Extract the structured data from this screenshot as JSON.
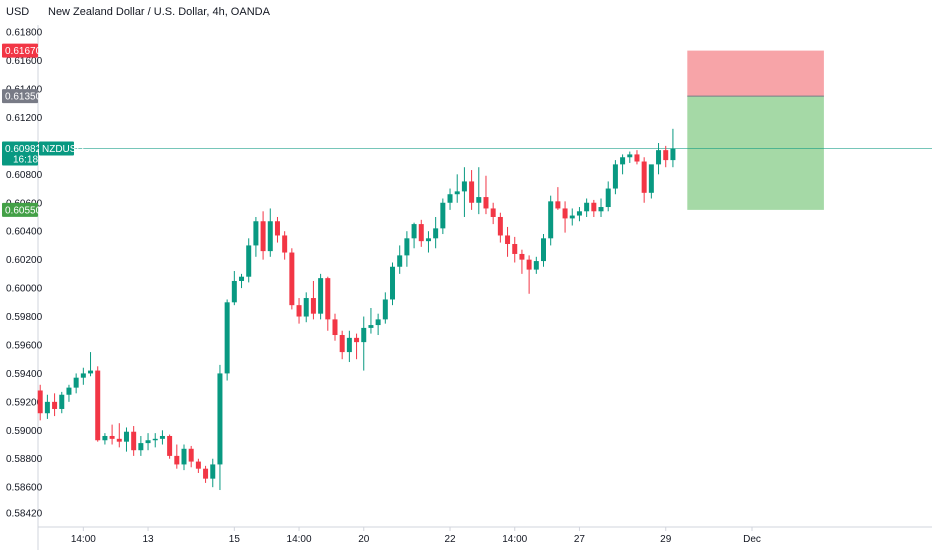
{
  "header": {
    "currency": "USD",
    "title": "New Zealand Dollar / U.S. Dollar, 4h, OANDA"
  },
  "colors": {
    "up": "#089981",
    "down": "#f23645",
    "grid_axis": "#d1d4dc",
    "stop_zone": "#f7a4a8",
    "target_zone": "#a5d9a6",
    "stop_tag": "#f23645",
    "entry_tag": "#787b86",
    "target_tag": "#43a047",
    "price_line": "#089981"
  },
  "price_tags": {
    "stop": "0.61670",
    "entry": "0.61350",
    "target": "0.60550",
    "last": "0.60982",
    "countdown": "16:18",
    "symbol": "NZDUSD"
  },
  "chart_data": {
    "type": "candlestick",
    "title": "New Zealand Dollar / U.S. Dollar, 4h, OANDA",
    "ylim": [
      0.5832,
      0.6185
    ],
    "y_ticks": [
      "0.58420",
      "0.58600",
      "0.58800",
      "0.59000",
      "0.59200",
      "0.59400",
      "0.59600",
      "0.59800",
      "0.60000",
      "0.60200",
      "0.60400",
      "0.60600",
      "0.60800",
      "0.61000",
      "0.61200",
      "0.61400",
      "0.61600",
      "0.61800"
    ],
    "x_ticks": [
      {
        "index": 6,
        "label": "14:00"
      },
      {
        "index": 15,
        "label": "13"
      },
      {
        "index": 27,
        "label": "15"
      },
      {
        "index": 36,
        "label": "14:00"
      },
      {
        "index": 45,
        "label": "20"
      },
      {
        "index": 57,
        "label": "22"
      },
      {
        "index": 66,
        "label": "14:00"
      },
      {
        "index": 75,
        "label": "27"
      },
      {
        "index": 87,
        "label": "29"
      },
      {
        "index": 99,
        "label": "Dec"
      }
    ],
    "candles": [
      [
        0.5928,
        0.5932,
        0.5907,
        0.5912
      ],
      [
        0.5912,
        0.5925,
        0.5908,
        0.592
      ],
      [
        0.592,
        0.5926,
        0.591,
        0.5915
      ],
      [
        0.5915,
        0.5927,
        0.5912,
        0.5925
      ],
      [
        0.5925,
        0.5932,
        0.592,
        0.593
      ],
      [
        0.593,
        0.594,
        0.5926,
        0.5937
      ],
      [
        0.5937,
        0.5944,
        0.5932,
        0.594
      ],
      [
        0.594,
        0.5955,
        0.5938,
        0.5942
      ],
      [
        0.5942,
        0.5945,
        0.5892,
        0.5893
      ],
      [
        0.5893,
        0.5898,
        0.589,
        0.5896
      ],
      [
        0.5896,
        0.5904,
        0.589,
        0.5894
      ],
      [
        0.5894,
        0.5905,
        0.5888,
        0.5892
      ],
      [
        0.5892,
        0.5902,
        0.5885,
        0.5899
      ],
      [
        0.5899,
        0.5903,
        0.5882,
        0.5886
      ],
      [
        0.5886,
        0.5896,
        0.5882,
        0.5891
      ],
      [
        0.5891,
        0.5898,
        0.5886,
        0.5893
      ],
      [
        0.5893,
        0.5898,
        0.5888,
        0.5894
      ],
      [
        0.5894,
        0.59,
        0.589,
        0.5896
      ],
      [
        0.5896,
        0.5897,
        0.588,
        0.5882
      ],
      [
        0.5882,
        0.589,
        0.5873,
        0.5876
      ],
      [
        0.5876,
        0.589,
        0.5872,
        0.5887
      ],
      [
        0.5887,
        0.5889,
        0.5874,
        0.5878
      ],
      [
        0.5878,
        0.588,
        0.587,
        0.5873
      ],
      [
        0.5873,
        0.5875,
        0.5863,
        0.5866
      ],
      [
        0.5866,
        0.588,
        0.586,
        0.5876
      ],
      [
        0.5876,
        0.5946,
        0.5858,
        0.594
      ],
      [
        0.594,
        0.5992,
        0.5935,
        0.599
      ],
      [
        0.599,
        0.6012,
        0.5988,
        0.6005
      ],
      [
        0.6005,
        0.601,
        0.6,
        0.6008
      ],
      [
        0.6008,
        0.6035,
        0.6004,
        0.603
      ],
      [
        0.603,
        0.605,
        0.6022,
        0.6047
      ],
      [
        0.6047,
        0.6054,
        0.602,
        0.6026
      ],
      [
        0.6026,
        0.6056,
        0.6022,
        0.6047
      ],
      [
        0.6047,
        0.605,
        0.6032,
        0.6037
      ],
      [
        0.6037,
        0.604,
        0.602,
        0.6025
      ],
      [
        0.6025,
        0.6028,
        0.5985,
        0.5988
      ],
      [
        0.5988,
        0.5993,
        0.5975,
        0.598
      ],
      [
        0.598,
        0.5997,
        0.5976,
        0.5993
      ],
      [
        0.5993,
        0.6005,
        0.5978,
        0.5982
      ],
      [
        0.5982,
        0.601,
        0.5978,
        0.6007
      ],
      [
        0.6007,
        0.6008,
        0.597,
        0.5978
      ],
      [
        0.5978,
        0.5982,
        0.5963,
        0.5967
      ],
      [
        0.5967,
        0.597,
        0.595,
        0.5955
      ],
      [
        0.5955,
        0.597,
        0.5948,
        0.5965
      ],
      [
        0.5965,
        0.5968,
        0.595,
        0.5962
      ],
      [
        0.5962,
        0.598,
        0.5942,
        0.5972
      ],
      [
        0.5972,
        0.5986,
        0.5968,
        0.5974
      ],
      [
        0.5974,
        0.5982,
        0.5967,
        0.5978
      ],
      [
        0.5978,
        0.5997,
        0.5975,
        0.5992
      ],
      [
        0.5992,
        0.6018,
        0.5988,
        0.6015
      ],
      [
        0.6015,
        0.603,
        0.601,
        0.6023
      ],
      [
        0.6023,
        0.604,
        0.6015,
        0.6035
      ],
      [
        0.6035,
        0.6046,
        0.6028,
        0.6045
      ],
      [
        0.6045,
        0.6048,
        0.6029,
        0.6033
      ],
      [
        0.6033,
        0.604,
        0.6025,
        0.6035
      ],
      [
        0.6035,
        0.605,
        0.6028,
        0.6042
      ],
      [
        0.6042,
        0.6063,
        0.6038,
        0.606
      ],
      [
        0.606,
        0.607,
        0.6055,
        0.6066
      ],
      [
        0.6066,
        0.608,
        0.606,
        0.6068
      ],
      [
        0.6068,
        0.6085,
        0.605,
        0.6075
      ],
      [
        0.6075,
        0.6083,
        0.6055,
        0.606
      ],
      [
        0.606,
        0.6085,
        0.6052,
        0.6064
      ],
      [
        0.6064,
        0.6079,
        0.6052,
        0.6056
      ],
      [
        0.6056,
        0.606,
        0.6045,
        0.605
      ],
      [
        0.605,
        0.6053,
        0.6032,
        0.6037
      ],
      [
        0.6037,
        0.6043,
        0.6022,
        0.6031
      ],
      [
        0.6031,
        0.6036,
        0.6018,
        0.6024
      ],
      [
        0.6024,
        0.6027,
        0.601,
        0.602
      ],
      [
        0.602,
        0.6023,
        0.5996,
        0.6013
      ],
      [
        0.6013,
        0.6022,
        0.601,
        0.6019
      ],
      [
        0.6019,
        0.6038,
        0.6015,
        0.6035
      ],
      [
        0.6035,
        0.6065,
        0.603,
        0.6061
      ],
      [
        0.6061,
        0.6071,
        0.6055,
        0.6056
      ],
      [
        0.6056,
        0.6061,
        0.6039,
        0.6049
      ],
      [
        0.6049,
        0.6056,
        0.6044,
        0.6051
      ],
      [
        0.6051,
        0.6057,
        0.6047,
        0.6054
      ],
      [
        0.6054,
        0.6063,
        0.605,
        0.606
      ],
      [
        0.606,
        0.6062,
        0.605,
        0.6054
      ],
      [
        0.6054,
        0.6063,
        0.605,
        0.6057
      ],
      [
        0.6057,
        0.6075,
        0.6054,
        0.607
      ],
      [
        0.607,
        0.609,
        0.6066,
        0.6087
      ],
      [
        0.6087,
        0.6094,
        0.608,
        0.6092
      ],
      [
        0.6092,
        0.6096,
        0.6088,
        0.6094
      ],
      [
        0.6094,
        0.6097,
        0.6087,
        0.6089
      ],
      [
        0.6089,
        0.6092,
        0.606,
        0.6067
      ],
      [
        0.6067,
        0.6086,
        0.6063,
        0.6087
      ],
      [
        0.6087,
        0.6102,
        0.608,
        0.6097
      ],
      [
        0.6097,
        0.61,
        0.6085,
        0.609
      ],
      [
        0.609,
        0.6112,
        0.6085,
        0.6098
      ]
    ],
    "position": {
      "type": "short",
      "entry": 0.6135,
      "stop": 0.6167,
      "target": 0.6055,
      "start_index": 90,
      "end_index": 109
    },
    "last_price": 0.60982
  }
}
